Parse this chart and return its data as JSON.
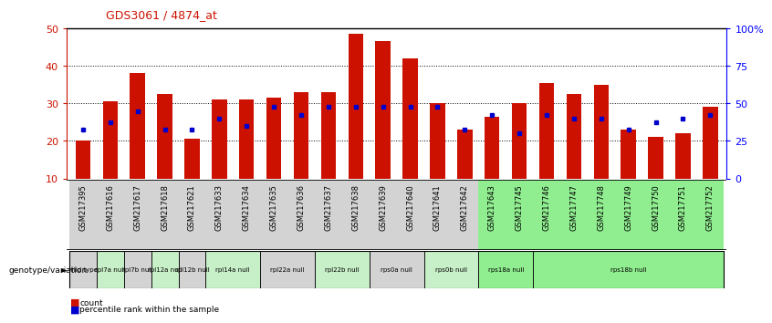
{
  "title": "GDS3061 / 4874_at",
  "samples": [
    "GSM217395",
    "GSM217616",
    "GSM217617",
    "GSM217618",
    "GSM217621",
    "GSM217633",
    "GSM217634",
    "GSM217635",
    "GSM217636",
    "GSM217637",
    "GSM217638",
    "GSM217639",
    "GSM217640",
    "GSM217641",
    "GSM217642",
    "GSM217643",
    "GSM217745",
    "GSM217746",
    "GSM217747",
    "GSM217748",
    "GSM217749",
    "GSM217750",
    "GSM217751",
    "GSM217752"
  ],
  "counts": [
    20.0,
    30.5,
    38.0,
    32.5,
    20.5,
    31.0,
    31.0,
    31.5,
    33.0,
    33.0,
    48.5,
    46.5,
    42.0,
    30.0,
    23.0,
    26.5,
    30.0,
    35.5,
    32.5,
    35.0,
    23.0,
    21.0,
    22.0,
    29.0
  ],
  "percentile_ranks": [
    23,
    25,
    28,
    23,
    23,
    26,
    24,
    29,
    27,
    29,
    29,
    29,
    29,
    29,
    23,
    27,
    22,
    27,
    26,
    26,
    23,
    25,
    26,
    27
  ],
  "geno_groups": [
    {
      "start": 0,
      "end": 1,
      "label": "wild type",
      "green": false
    },
    {
      "start": 1,
      "end": 2,
      "label": "rpl7a null",
      "green": true
    },
    {
      "start": 2,
      "end": 3,
      "label": "rpl7b null",
      "green": false
    },
    {
      "start": 3,
      "end": 4,
      "label": "rpl12a null",
      "green": true
    },
    {
      "start": 4,
      "end": 5,
      "label": "rpl12b null",
      "green": false
    },
    {
      "start": 5,
      "end": 7,
      "label": "rpl14a null",
      "green": true
    },
    {
      "start": 7,
      "end": 9,
      "label": "rpl22a null",
      "green": false
    },
    {
      "start": 9,
      "end": 11,
      "label": "rpl22b null",
      "green": true
    },
    {
      "start": 11,
      "end": 13,
      "label": "rps0a null",
      "green": false
    },
    {
      "start": 13,
      "end": 15,
      "label": "rps0b null",
      "green": true
    },
    {
      "start": 15,
      "end": 17,
      "label": "rps18a null",
      "green": true
    },
    {
      "start": 17,
      "end": 24,
      "label": "rps18b null",
      "green": true
    }
  ],
  "bar_color": "#cc1100",
  "dot_color": "#0000cc",
  "ymin": 10,
  "ymax": 50,
  "yticks_left": [
    10,
    20,
    30,
    40,
    50
  ],
  "yticks_right_vals": [
    0,
    25,
    50,
    75,
    100
  ],
  "yticks_right_labels": [
    "0",
    "25",
    "50",
    "75",
    "100%"
  ],
  "bg_normal": "#d3d3d3",
  "bg_green": "#90ee90",
  "bg_light_green": "#b8f0b8"
}
